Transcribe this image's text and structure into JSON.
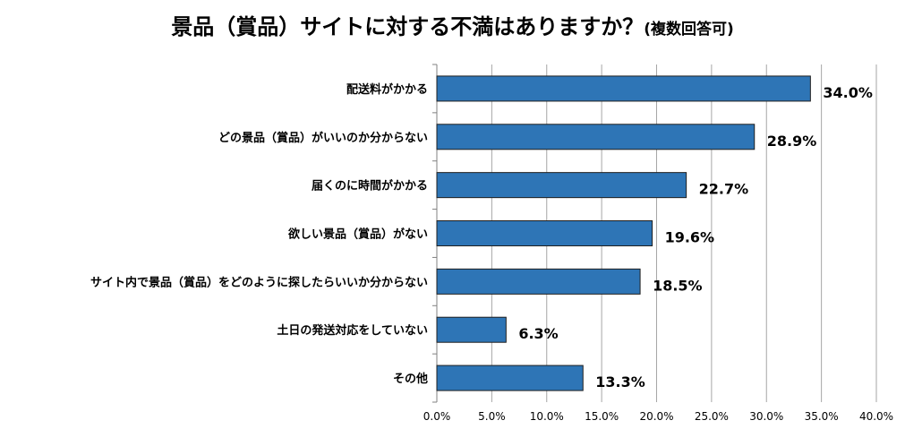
{
  "chart_data": {
    "type": "bar",
    "orientation": "horizontal",
    "title": "景品（賞品）サイトに対する不満はありますか？",
    "subtitle": "(複数回答可)",
    "categories": [
      "配送料がかかる",
      "どの景品（賞品）がいいのか分からない",
      "届くのに時間がかかる",
      "欲しい景品（賞品）がない",
      "サイト内で景品（賞品）をどのように探したらいいか分からない",
      "土日の発送対応をしていない",
      "その他"
    ],
    "values": [
      34.0,
      28.9,
      22.7,
      19.6,
      18.5,
      6.3,
      13.3
    ],
    "data_labels": [
      "34.0%",
      "28.9%",
      "22.7%",
      "19.6%",
      "18.5%",
      "6.3%",
      "13.3%"
    ],
    "xlim": [
      0,
      40
    ],
    "ticks": [
      0,
      5,
      10,
      15,
      20,
      25,
      30,
      35,
      40
    ],
    "tick_labels": [
      "0.0%",
      "5.0%",
      "10.0%",
      "15.0%",
      "20.0%",
      "25.0%",
      "30.0%",
      "35.0%",
      "40.0%"
    ],
    "bar_color": "#2e75b6",
    "bar_edge_color": "#1f1f1f",
    "grid": true,
    "legend": "none"
  }
}
